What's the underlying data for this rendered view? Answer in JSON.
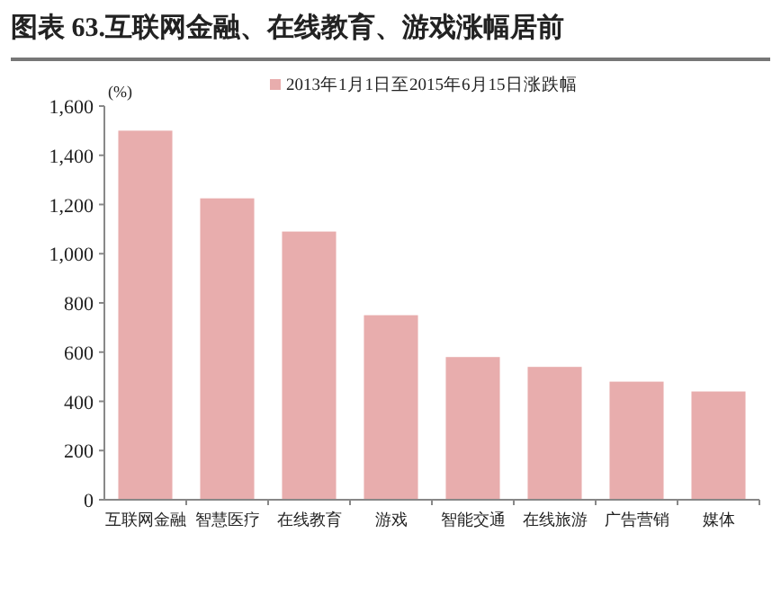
{
  "chart_data": {
    "type": "bar",
    "title": "图表 63.互联网金融、在线教育、游戏涨幅居前",
    "ylabel": "(%)",
    "categories": [
      "互联网金融",
      "智慧医疗",
      "在线教育",
      "游戏",
      "智能交通",
      "在线旅游",
      "广告营销",
      "媒体"
    ],
    "series": [
      {
        "name": "2013年1月1日至2015年6月15日涨跌幅",
        "color": "#e8adad",
        "values": [
          1500,
          1225,
          1090,
          750,
          580,
          540,
          480,
          440
        ]
      }
    ],
    "ylim": [
      0,
      1600
    ],
    "yticks": [
      {
        "value": 0,
        "label": "0"
      },
      {
        "value": 200,
        "label": "200"
      },
      {
        "value": 400,
        "label": "400"
      },
      {
        "value": 600,
        "label": "600"
      },
      {
        "value": 800,
        "label": "800"
      },
      {
        "value": 1000,
        "label": "1,000"
      },
      {
        "value": 1200,
        "label": "1,200"
      },
      {
        "value": 1400,
        "label": "1,400"
      },
      {
        "value": 1600,
        "label": "1,600"
      }
    ],
    "legend": "top",
    "grid": false
  }
}
